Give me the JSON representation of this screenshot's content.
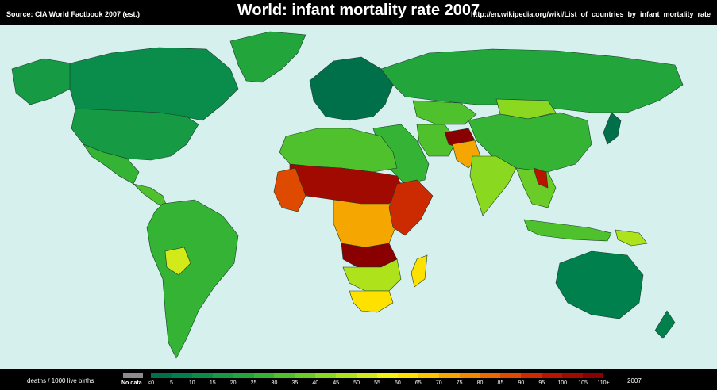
{
  "header": {
    "source": "Source: CIA World Factbook 2007 (est.)",
    "title": "World: infant mortality rate 2007",
    "url": "http://en.wikipedia.org/wiki/List_of_countries_by_infant_mortality_rate"
  },
  "legend": {
    "unit": "deaths / 1000 live births",
    "no_data_label": "No data",
    "no_data_color": "#8c8c8c",
    "ticks": [
      "<0",
      "5",
      "10",
      "15",
      "20",
      "25",
      "30",
      "35",
      "40",
      "45",
      "50",
      "55",
      "60",
      "65",
      "70",
      "75",
      "80",
      "85",
      "90",
      "95",
      "100",
      "105",
      "110+"
    ],
    "colors": [
      "#00704a",
      "#00804c",
      "#0a8d4a",
      "#179a44",
      "#22a63c",
      "#34b334",
      "#4ec12c",
      "#6acc26",
      "#8ad820",
      "#aee21a",
      "#d2ea1a",
      "#f2f214",
      "#ffe100",
      "#fcc500",
      "#f5a600",
      "#f08800",
      "#e86a00",
      "#dd4a00",
      "#cc2a00",
      "#b81400",
      "#a00a00",
      "#8a0000"
    ],
    "year": "2007"
  },
  "map": {
    "ocean_color": "#d6f0ee",
    "regions": [
      {
        "name": "greenland",
        "color": "#22a63c"
      },
      {
        "name": "canada",
        "color": "#0a8d4a"
      },
      {
        "name": "usa",
        "color": "#179a44"
      },
      {
        "name": "alaska",
        "color": "#179a44"
      },
      {
        "name": "mexico",
        "color": "#34b334"
      },
      {
        "name": "central-america",
        "color": "#4ec12c"
      },
      {
        "name": "south-america",
        "color": "#34b334"
      },
      {
        "name": "bolivia",
        "color": "#d2ea1a"
      },
      {
        "name": "europe",
        "color": "#00704a"
      },
      {
        "name": "russia",
        "color": "#22a63c"
      },
      {
        "name": "kazakhstan",
        "color": "#4ec12c"
      },
      {
        "name": "mongolia",
        "color": "#8ad820"
      },
      {
        "name": "china",
        "color": "#34b334"
      },
      {
        "name": "middle-east",
        "color": "#34b334"
      },
      {
        "name": "iran",
        "color": "#4ec12c"
      },
      {
        "name": "afghanistan",
        "color": "#8a0000"
      },
      {
        "name": "pakistan",
        "color": "#f5a600"
      },
      {
        "name": "india",
        "color": "#8ad820"
      },
      {
        "name": "southeast-asia",
        "color": "#6acc26"
      },
      {
        "name": "laos",
        "color": "#b81400"
      },
      {
        "name": "north-africa",
        "color": "#4ec12c"
      },
      {
        "name": "sahel",
        "color": "#a00a00"
      },
      {
        "name": "west-africa",
        "color": "#dd4a00"
      },
      {
        "name": "central-africa",
        "color": "#f5a600"
      },
      {
        "name": "east-africa",
        "color": "#cc2a00"
      },
      {
        "name": "angola",
        "color": "#8a0000"
      },
      {
        "name": "southern-africa",
        "color": "#aee21a"
      },
      {
        "name": "south-africa",
        "color": "#ffe100"
      },
      {
        "name": "madagascar",
        "color": "#ffe100"
      },
      {
        "name": "indonesia",
        "color": "#4ec12c"
      },
      {
        "name": "australia",
        "color": "#00804c"
      },
      {
        "name": "new-zealand",
        "color": "#00804c"
      },
      {
        "name": "japan",
        "color": "#00704a"
      },
      {
        "name": "papua-new-guinea",
        "color": "#aee21a"
      }
    ]
  }
}
